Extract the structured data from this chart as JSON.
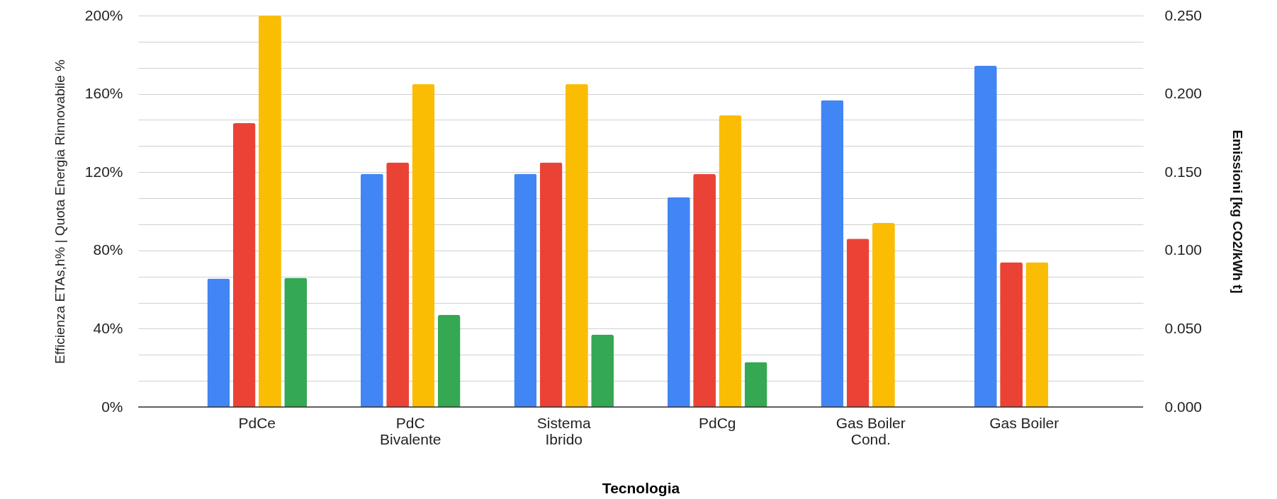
{
  "chart_data": {
    "type": "bar",
    "categories": [
      "PdCe",
      "PdC\nBivalente",
      "Sistema\nIbrido",
      "PdCg",
      "Gas Boiler\nCond.",
      "Gas Boiler"
    ],
    "xlabel": "Tecnologia",
    "ylabel": "Efficienza ETAs,h% | Quota Energia Rinnovabile %",
    "y2label": "Emissioni [kg CO2/kWh t]",
    "series": [
      {
        "color": "#4285f4",
        "axis": "y2",
        "values": [
          0.082,
          0.149,
          0.149,
          0.134,
          0.196,
          0.218
        ]
      },
      {
        "color": "#ea4335",
        "values": [
          145,
          125,
          125,
          119,
          86,
          74
        ]
      },
      {
        "color": "#fbbc04",
        "values": [
          200,
          165,
          165,
          149,
          94,
          74
        ]
      },
      {
        "color": "#34a853",
        "values": [
          66,
          47,
          37,
          23,
          null,
          null
        ]
      }
    ],
    "ylim": [
      0,
      200
    ],
    "yticks": [
      {
        "value": 0,
        "label": "0%"
      },
      {
        "value": 13.3,
        "label": null
      },
      {
        "value": 26.7,
        "label": null
      },
      {
        "value": 40,
        "label": "40%"
      },
      {
        "value": 53.3,
        "label": null
      },
      {
        "value": 66.7,
        "label": null
      },
      {
        "value": 80,
        "label": "80%"
      },
      {
        "value": 93.3,
        "label": null
      },
      {
        "value": 106.7,
        "label": null
      },
      {
        "value": 120,
        "label": "120%"
      },
      {
        "value": 133.3,
        "label": null
      },
      {
        "value": 146.7,
        "label": null
      },
      {
        "value": 160,
        "label": "160%"
      },
      {
        "value": 173.3,
        "label": null
      },
      {
        "value": 186.7,
        "label": null
      },
      {
        "value": 200,
        "label": "200%"
      }
    ],
    "y2lim": [
      0,
      0.25
    ],
    "y2ticks": [
      {
        "value": 0,
        "label": "0.000"
      },
      {
        "value": 0.05,
        "label": "0.050"
      },
      {
        "value": 0.1,
        "label": "0.100"
      },
      {
        "value": 0.15,
        "label": "0.150"
      },
      {
        "value": 0.2,
        "label": "0.200"
      },
      {
        "value": 0.25,
        "label": "0.250"
      }
    ],
    "grid": "y"
  }
}
